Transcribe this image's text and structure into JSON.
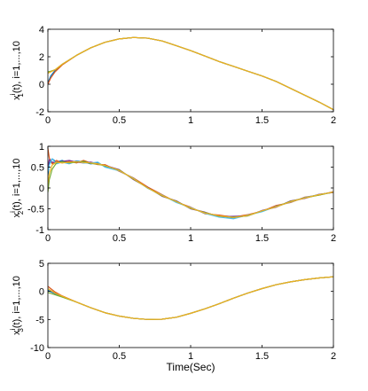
{
  "chart_data": [
    {
      "type": "line",
      "ylabel_main": "x",
      "ylabel_sub": "1",
      "ylabel_sup": "i",
      "ylabel_rest": "(t), i=1,...,10",
      "xlabel": "",
      "xlim": [
        0,
        2
      ],
      "ylim": [
        -2,
        4
      ],
      "xticks": [
        0,
        0.5,
        1,
        1.5,
        2
      ],
      "xtick_labels": [
        "0",
        "0.5",
        "1",
        "1.5",
        "2"
      ],
      "yticks": [
        -2,
        0,
        2,
        4
      ],
      "ytick_labels": [
        "-2",
        "0",
        "2",
        "4"
      ],
      "grid": false,
      "series": [
        {
          "color": "#0072bd",
          "x": [
            0,
            0.02,
            0.05,
            0.1,
            0.2,
            0.3,
            0.4,
            0.5,
            0.6,
            0.7,
            0.8,
            0.9,
            1.0,
            1.1,
            1.2,
            1.3,
            1.4,
            1.5,
            1.6,
            1.7,
            1.8,
            1.9,
            2.0
          ],
          "y": [
            0.1,
            0.6,
            1.0,
            1.45,
            2.1,
            2.65,
            3.05,
            3.3,
            3.4,
            3.35,
            3.15,
            2.8,
            2.45,
            2.05,
            1.65,
            1.3,
            0.95,
            0.6,
            0.2,
            -0.3,
            -0.8,
            -1.3,
            -1.85
          ]
        },
        {
          "color": "#d95319",
          "x": [
            0,
            0.02,
            0.05,
            0.1,
            0.2,
            0.3,
            0.4,
            0.5,
            0.6,
            0.7,
            0.8,
            0.9,
            1.0,
            1.1,
            1.2,
            1.3,
            1.4,
            1.5,
            1.6,
            1.7,
            1.8,
            1.9,
            2.0
          ],
          "y": [
            0.0,
            0.45,
            0.9,
            1.4,
            2.1,
            2.65,
            3.05,
            3.3,
            3.4,
            3.35,
            3.15,
            2.8,
            2.45,
            2.05,
            1.65,
            1.3,
            0.95,
            0.6,
            0.2,
            -0.3,
            -0.8,
            -1.3,
            -1.85
          ]
        },
        {
          "color": "#77ac30",
          "x": [
            0,
            0.02,
            0.05,
            0.1,
            0.2,
            0.3,
            0.4,
            0.5,
            0.6,
            0.7,
            0.8,
            0.9,
            1.0,
            1.1,
            1.2,
            1.3,
            1.4,
            1.5,
            1.6,
            1.7,
            1.8,
            1.9,
            2.0
          ],
          "y": [
            0.9,
            0.95,
            1.05,
            1.45,
            2.1,
            2.65,
            3.05,
            3.3,
            3.4,
            3.35,
            3.15,
            2.8,
            2.45,
            2.05,
            1.65,
            1.3,
            0.95,
            0.6,
            0.2,
            -0.3,
            -0.8,
            -1.3,
            -1.85
          ]
        },
        {
          "color": "#edb120",
          "x": [
            0,
            0.02,
            0.05,
            0.1,
            0.2,
            0.3,
            0.4,
            0.5,
            0.6,
            0.7,
            0.8,
            0.9,
            1.0,
            1.1,
            1.2,
            1.3,
            1.4,
            1.5,
            1.6,
            1.7,
            1.8,
            1.9,
            2.0
          ],
          "y": [
            0.8,
            0.9,
            1.05,
            1.45,
            2.1,
            2.65,
            3.05,
            3.3,
            3.4,
            3.35,
            3.15,
            2.8,
            2.45,
            2.05,
            1.65,
            1.3,
            0.95,
            0.6,
            0.2,
            -0.3,
            -0.8,
            -1.3,
            -1.85
          ]
        }
      ]
    },
    {
      "type": "line",
      "ylabel_main": "x",
      "ylabel_sub": "2",
      "ylabel_sup": "i",
      "ylabel_rest": "(t), i=1,...,10",
      "xlabel": "",
      "xlim": [
        0,
        2
      ],
      "ylim": [
        -1,
        1
      ],
      "xticks": [
        0,
        0.5,
        1,
        1.5,
        2
      ],
      "xtick_labels": [
        "0",
        "0.5",
        "1",
        "1.5",
        "2"
      ],
      "yticks": [
        -1,
        -0.5,
        0,
        0.5,
        1
      ],
      "ytick_labels": [
        "-1",
        "-0.5",
        "0",
        "0.5",
        "1"
      ],
      "grid": false,
      "series": [
        {
          "color": "#0072bd",
          "x": [
            0,
            0.01,
            0.03,
            0.06,
            0.1,
            0.15,
            0.2,
            0.25,
            0.3,
            0.35,
            0.4,
            0.5,
            0.6,
            0.7,
            0.8,
            0.9,
            1.0,
            1.1,
            1.2,
            1.3,
            1.4,
            1.5,
            1.6,
            1.7,
            1.8,
            1.9,
            2.0
          ],
          "y": [
            0.3,
            0.6,
            0.7,
            0.62,
            0.66,
            0.6,
            0.65,
            0.62,
            0.58,
            0.6,
            0.52,
            0.42,
            0.22,
            0.0,
            -0.18,
            -0.33,
            -0.48,
            -0.6,
            -0.67,
            -0.72,
            -0.66,
            -0.55,
            -0.45,
            -0.33,
            -0.24,
            -0.16,
            -0.1
          ]
        },
        {
          "color": "#d95319",
          "x": [
            0,
            0.01,
            0.03,
            0.06,
            0.1,
            0.15,
            0.2,
            0.25,
            0.3,
            0.35,
            0.4,
            0.5,
            0.6,
            0.7,
            0.8,
            0.9,
            1.0,
            1.1,
            1.2,
            1.3,
            1.4,
            1.5,
            1.6,
            1.7,
            1.8,
            1.9,
            2.0
          ],
          "y": [
            0.95,
            0.72,
            0.58,
            0.66,
            0.6,
            0.64,
            0.6,
            0.66,
            0.6,
            0.56,
            0.56,
            0.4,
            0.24,
            0.02,
            -0.16,
            -0.34,
            -0.46,
            -0.62,
            -0.65,
            -0.7,
            -0.64,
            -0.56,
            -0.42,
            -0.35,
            -0.22,
            -0.17,
            -0.09
          ]
        },
        {
          "color": "#7e2f8e",
          "x": [
            0,
            0.01,
            0.03,
            0.06,
            0.1,
            0.15,
            0.2,
            0.25,
            0.3,
            0.35,
            0.4,
            0.5,
            0.6,
            0.7,
            0.8,
            0.9,
            1.0,
            1.1,
            1.2,
            1.3,
            1.4,
            1.5,
            1.6,
            1.7,
            1.8,
            1.9,
            2.0
          ],
          "y": [
            0.5,
            0.68,
            0.62,
            0.6,
            0.64,
            0.66,
            0.62,
            0.6,
            0.62,
            0.58,
            0.54,
            0.44,
            0.2,
            0.01,
            -0.2,
            -0.31,
            -0.5,
            -0.58,
            -0.69,
            -0.68,
            -0.67,
            -0.54,
            -0.46,
            -0.31,
            -0.25,
            -0.15,
            -0.11
          ]
        },
        {
          "color": "#4dbeee",
          "x": [
            0,
            0.01,
            0.03,
            0.06,
            0.1,
            0.15,
            0.2,
            0.25,
            0.3,
            0.35,
            0.4,
            0.5,
            0.6,
            0.7,
            0.8,
            0.9,
            1.0,
            1.1,
            1.2,
            1.3,
            1.4,
            1.5,
            1.6,
            1.7,
            1.8,
            1.9,
            2.0
          ],
          "y": [
            0.4,
            0.55,
            0.7,
            0.58,
            0.62,
            0.58,
            0.64,
            0.6,
            0.6,
            0.62,
            0.5,
            0.41,
            0.23,
            -0.01,
            -0.17,
            -0.35,
            -0.47,
            -0.61,
            -0.7,
            -0.74,
            -0.65,
            -0.57,
            -0.44,
            -0.34,
            -0.23,
            -0.16,
            -0.1
          ]
        },
        {
          "color": "#77ac30",
          "x": [
            0,
            0.01,
            0.03,
            0.06,
            0.1,
            0.15,
            0.2,
            0.25,
            0.3,
            0.35,
            0.4,
            0.5,
            0.6,
            0.7,
            0.8,
            0.9,
            1.0,
            1.1,
            1.2,
            1.3,
            1.4,
            1.5,
            1.6,
            1.7,
            1.8,
            1.9,
            2.0
          ],
          "y": [
            -0.1,
            0.2,
            0.45,
            0.6,
            0.63,
            0.6,
            0.62,
            0.64,
            0.59,
            0.57,
            0.53,
            0.43,
            0.21,
            0.0,
            -0.19,
            -0.32,
            -0.49,
            -0.59,
            -0.68,
            -0.7,
            -0.67,
            -0.55,
            -0.45,
            -0.32,
            -0.24,
            -0.17,
            -0.1
          ]
        },
        {
          "color": "#edb120",
          "x": [
            0,
            0.01,
            0.03,
            0.06,
            0.1,
            0.15,
            0.2,
            0.25,
            0.3,
            0.35,
            0.4,
            0.5,
            0.6,
            0.7,
            0.8,
            0.9,
            1.0,
            1.1,
            1.2,
            1.3,
            1.4,
            1.5,
            1.6,
            1.7,
            1.8,
            1.9,
            2.0
          ],
          "y": [
            0.1,
            0.35,
            0.55,
            0.62,
            0.6,
            0.62,
            0.63,
            0.61,
            0.6,
            0.58,
            0.54,
            0.42,
            0.22,
            0.0,
            -0.18,
            -0.33,
            -0.48,
            -0.6,
            -0.67,
            -0.71,
            -0.66,
            -0.55,
            -0.45,
            -0.33,
            -0.24,
            -0.16,
            -0.1
          ]
        }
      ]
    },
    {
      "type": "line",
      "ylabel_main": "x",
      "ylabel_sub": "3",
      "ylabel_sup": "i",
      "ylabel_rest": "(t), i=1,...,10",
      "xlabel": "Time(Sec)",
      "xlim": [
        0,
        2
      ],
      "ylim": [
        -10,
        5
      ],
      "xticks": [
        0,
        0.5,
        1,
        1.5,
        2
      ],
      "xtick_labels": [
        "0",
        "0.5",
        "1",
        "1.5",
        "2"
      ],
      "yticks": [
        -10,
        -5,
        0,
        5
      ],
      "ytick_labels": [
        "-10",
        "-5",
        "0",
        "5"
      ],
      "grid": false,
      "series": [
        {
          "color": "#0072bd",
          "x": [
            0,
            0.05,
            0.1,
            0.2,
            0.3,
            0.4,
            0.5,
            0.6,
            0.7,
            0.8,
            0.9,
            1.0,
            1.1,
            1.2,
            1.3,
            1.4,
            1.5,
            1.6,
            1.7,
            1.8,
            1.9,
            2.0
          ],
          "y": [
            0.2,
            -0.4,
            -0.9,
            -1.9,
            -2.9,
            -3.8,
            -4.4,
            -4.8,
            -5.0,
            -4.95,
            -4.6,
            -3.9,
            -3.1,
            -2.2,
            -1.2,
            -0.3,
            0.5,
            1.2,
            1.7,
            2.1,
            2.4,
            2.6
          ]
        },
        {
          "color": "#d95319",
          "x": [
            0,
            0.05,
            0.1,
            0.2,
            0.3,
            0.4,
            0.5,
            0.6,
            0.7,
            0.8,
            0.9,
            1.0,
            1.1,
            1.2,
            1.3,
            1.4,
            1.5,
            1.6,
            1.7,
            1.8,
            1.9,
            2.0
          ],
          "y": [
            0.9,
            -0.1,
            -0.8,
            -1.9,
            -2.9,
            -3.8,
            -4.4,
            -4.8,
            -5.0,
            -4.95,
            -4.6,
            -3.9,
            -3.1,
            -2.2,
            -1.2,
            -0.3,
            0.5,
            1.2,
            1.7,
            2.1,
            2.4,
            2.6
          ]
        },
        {
          "color": "#77ac30",
          "x": [
            0,
            0.05,
            0.1,
            0.2,
            0.3,
            0.4,
            0.5,
            0.6,
            0.7,
            0.8,
            0.9,
            1.0,
            1.1,
            1.2,
            1.3,
            1.4,
            1.5,
            1.6,
            1.7,
            1.8,
            1.9,
            2.0
          ],
          "y": [
            -0.2,
            -0.6,
            -1.0,
            -1.9,
            -2.9,
            -3.8,
            -4.4,
            -4.8,
            -5.0,
            -4.95,
            -4.6,
            -3.9,
            -3.1,
            -2.2,
            -1.2,
            -0.3,
            0.5,
            1.2,
            1.7,
            2.1,
            2.4,
            2.6
          ]
        },
        {
          "color": "#edb120",
          "x": [
            0,
            0.05,
            0.1,
            0.2,
            0.3,
            0.4,
            0.5,
            0.6,
            0.7,
            0.8,
            0.9,
            1.0,
            1.1,
            1.2,
            1.3,
            1.4,
            1.5,
            1.6,
            1.7,
            1.8,
            1.9,
            2.0
          ],
          "y": [
            0.5,
            -0.3,
            -0.85,
            -1.9,
            -2.9,
            -3.8,
            -4.4,
            -4.8,
            -5.0,
            -4.95,
            -4.6,
            -3.9,
            -3.1,
            -2.2,
            -1.2,
            -0.3,
            0.5,
            1.2,
            1.7,
            2.1,
            2.4,
            2.6
          ]
        }
      ]
    }
  ]
}
